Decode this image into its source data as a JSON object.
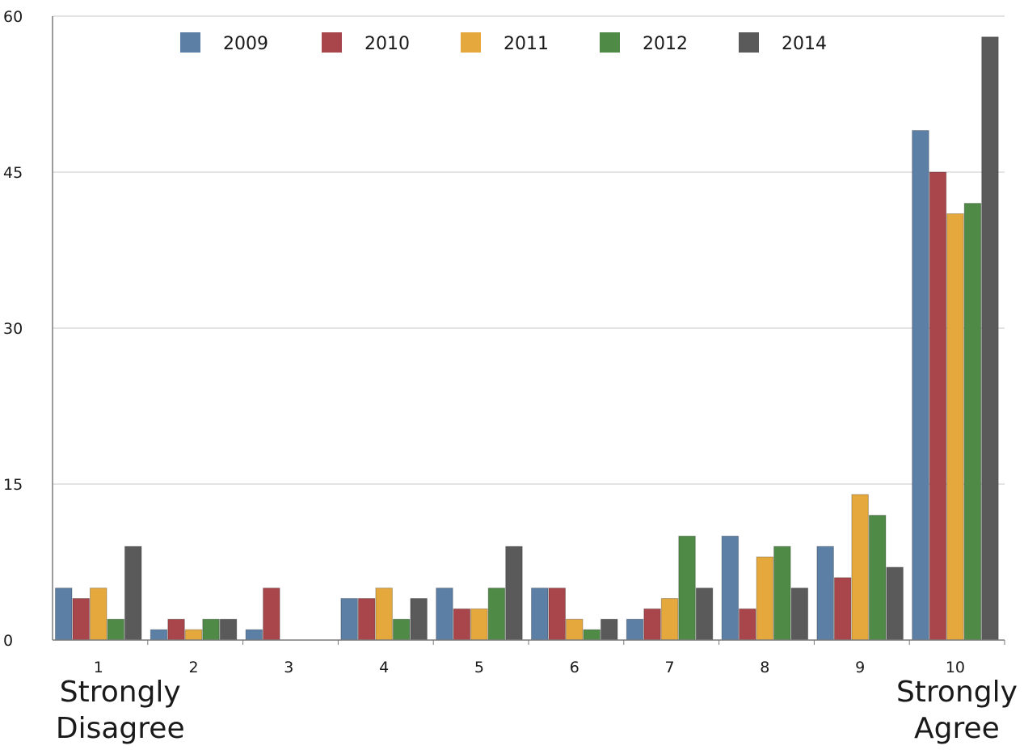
{
  "chart_data": {
    "type": "bar",
    "categories": [
      "1",
      "2",
      "3",
      "4",
      "5",
      "6",
      "7",
      "8",
      "9",
      "10"
    ],
    "series": [
      {
        "name": "2009",
        "color": "#5c7fa6",
        "values": [
          5,
          1,
          1,
          4,
          5,
          5,
          2,
          10,
          9,
          49
        ]
      },
      {
        "name": "2010",
        "color": "#a8464c",
        "values": [
          4,
          2,
          5,
          4,
          3,
          5,
          3,
          3,
          6,
          45
        ]
      },
      {
        "name": "2011",
        "color": "#e5a83c",
        "values": [
          5,
          1,
          0,
          5,
          3,
          2,
          4,
          8,
          14,
          41
        ]
      },
      {
        "name": "2012",
        "color": "#4f8a47",
        "values": [
          2,
          2,
          0,
          2,
          5,
          1,
          10,
          9,
          12,
          42
        ]
      },
      {
        "name": "2014",
        "color": "#5a5a5a",
        "values": [
          9,
          2,
          0,
          4,
          9,
          2,
          5,
          5,
          7,
          58
        ]
      }
    ],
    "yticks": [
      "0",
      "15",
      "30",
      "45",
      "60"
    ],
    "ylim": [
      0,
      60
    ],
    "grid": true,
    "legend_position": "top",
    "annotations": [
      {
        "category": "1",
        "lines": [
          "Strongly",
          "Disagree"
        ]
      },
      {
        "category": "10",
        "lines": [
          "Strongly",
          "Agree"
        ]
      }
    ],
    "title": "",
    "xlabel": "",
    "ylabel": ""
  }
}
